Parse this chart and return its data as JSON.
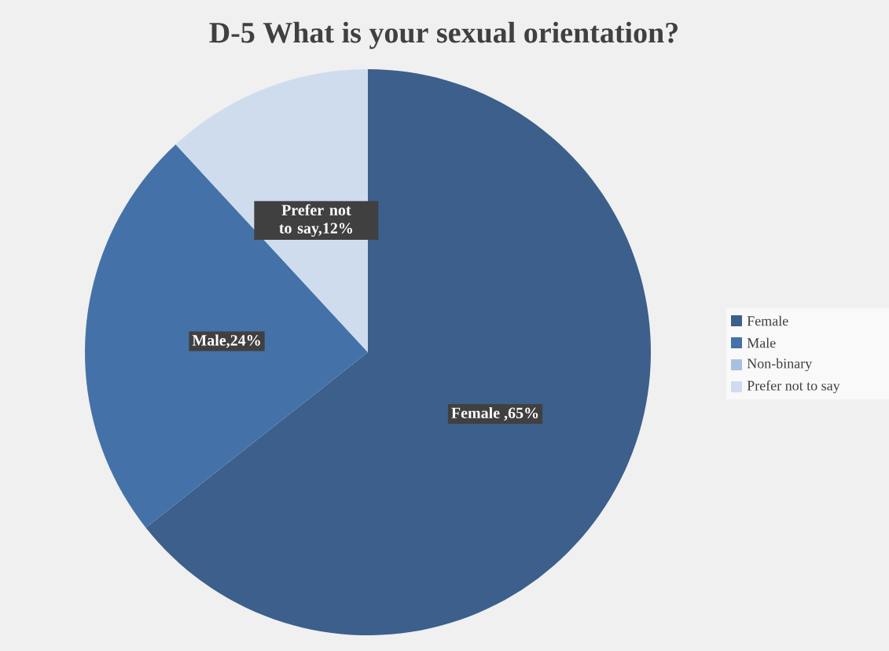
{
  "chart_data": {
    "type": "pie",
    "title": "D-5 What is your sexual orientation?",
    "categories": [
      "Female",
      "Male",
      "Non-binary",
      "Prefer not to say"
    ],
    "values": [
      65,
      24,
      0,
      12
    ],
    "colors": [
      "#3c5f8c",
      "#4472a8",
      "#a9bfdf",
      "#cfdcee"
    ],
    "value_labels": [
      "Female ,65%",
      "Male,24%",
      null,
      "Prefer not to say,12%"
    ],
    "legend": "right"
  }
}
